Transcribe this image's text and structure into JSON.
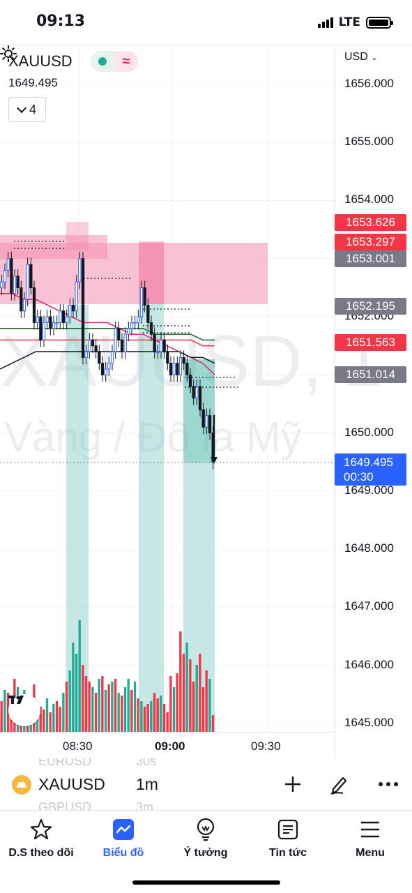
{
  "status_bar": {
    "time": "09:13",
    "network": "LTE"
  },
  "chart_header": {
    "symbol": "XAUUSD",
    "last_price": "1649.495",
    "indicators_count": "4",
    "pill_icon": "≈",
    "currency": "USD"
  },
  "watermark": {
    "line1": "XAUUSD, 1",
    "line2": "Vàng / Đô la Mỹ"
  },
  "price_axis": {
    "ticks": [
      "1656.000",
      "1655.000",
      "1654.000",
      "1652.000",
      "1650.000",
      "1649.000",
      "1648.000",
      "1647.000",
      "1646.000",
      "1645.000"
    ],
    "tags": [
      {
        "value": "1653.626",
        "color": "#f23645"
      },
      {
        "value": "1653.297",
        "color": "#f23645"
      },
      {
        "value": "1653.001",
        "color": "#787b86"
      },
      {
        "value": "1652.195",
        "color": "#787b86"
      },
      {
        "value": "1651.563",
        "color": "#f23645"
      },
      {
        "value": "1651.014",
        "color": "#787b86"
      }
    ],
    "current": {
      "value": "1649.495",
      "countdown": "00:30",
      "color": "#2962ff"
    }
  },
  "time_axis": {
    "labels": [
      "08:30",
      "09:00",
      "09:30"
    ]
  },
  "chart_data": {
    "type": "candlestick",
    "symbol": "XAUUSD",
    "interval": "1m",
    "ylim": [
      1645.0,
      1656.4
    ],
    "x_labels": [
      "08:30",
      "09:00",
      "09:30"
    ],
    "close_series": [
      1652.6,
      1652.8,
      1653.0,
      1652.4,
      1652.7,
      1652.5,
      1652.1,
      1652.3,
      1652.9,
      1652.5,
      1651.9,
      1652.0,
      1651.6,
      1651.9,
      1652.0,
      1651.8,
      1651.9,
      1651.9,
      1652.1,
      1651.9,
      1652.0,
      1652.2,
      1652.1,
      1652.6,
      1653.0,
      1651.3,
      1651.4,
      1651.6,
      1651.5,
      1651.4,
      1651.2,
      1651.0,
      1651.1,
      1651.2,
      1651.4,
      1651.8,
      1651.6,
      1651.4,
      1651.7,
      1651.8,
      1651.9,
      1651.9,
      1652.0,
      1652.5,
      1652.2,
      1651.9,
      1651.7,
      1651.4,
      1651.4,
      1651.6,
      1651.4,
      1651.2,
      1651.0,
      1651.2,
      1651.0,
      1651.3,
      1651.2,
      1651.0,
      1650.8,
      1650.6,
      1650.8,
      1650.4,
      1650.1,
      1650.3,
      1650.0,
      1649.5
    ],
    "volume_series": [
      55,
      75,
      70,
      50,
      95,
      80,
      60,
      75,
      40,
      65,
      85,
      50,
      45,
      40,
      60,
      35,
      50,
      55,
      45,
      70,
      90,
      110,
      160,
      140,
      200,
      120,
      100,
      90,
      80,
      70,
      95,
      100,
      75,
      85,
      90,
      95,
      70,
      65,
      80,
      95,
      75,
      90,
      60,
      55,
      45,
      50,
      55,
      70,
      60,
      65,
      50,
      35,
      100,
      80,
      105,
      180,
      140,
      160,
      130,
      90,
      120,
      140,
      80,
      110,
      95,
      30
    ],
    "volume_colors": [
      "#f23645",
      "#22ab94",
      "#f23645",
      "#f23645",
      "#f23645",
      "#22ab94",
      "#f23645",
      "#22ab94",
      "#f23645",
      "#22ab94",
      "#f23645",
      "#22ab94",
      "#f23645",
      "#f23645",
      "#22ab94",
      "#f23645",
      "#22ab94",
      "#f23645",
      "#f23645",
      "#22ab94",
      "#f23645",
      "#22ab94",
      "#22ab94",
      "#22ab94",
      "#22ab94",
      "#f23645",
      "#f23645",
      "#f23645",
      "#22ab94",
      "#f23645",
      "#22ab94",
      "#f23645",
      "#22ab94",
      "#f23645",
      "#22ab94",
      "#f23645",
      "#22ab94",
      "#f23645",
      "#22ab94",
      "#22ab94",
      "#f23645",
      "#22ab94",
      "#f23645",
      "#22ab94",
      "#f23645",
      "#f23645",
      "#22ab94",
      "#f23645",
      "#f23645",
      "#22ab94",
      "#f23645",
      "#f23645",
      "#f23645",
      "#22ab94",
      "#f23645",
      "#f23645",
      "#f23645",
      "#22ab94",
      "#f23645",
      "#f23645",
      "#22ab94",
      "#f23645",
      "#f23645",
      "#f23645",
      "#22ab94",
      "#f23645"
    ],
    "moving_averages": [
      {
        "color": "#e91e63",
        "values": [
          1652.4,
          1652.4,
          1652.3,
          1652.3,
          1652.2,
          1652.1,
          1652.0,
          1651.9,
          1651.9,
          1651.9,
          1651.8,
          1651.7,
          1651.7,
          1651.6,
          1651.5,
          1651.4,
          1651.3,
          1651.2,
          1651.0
        ]
      },
      {
        "color": "#f23645",
        "values": [
          1651.6,
          1651.6,
          1651.6,
          1651.6,
          1651.6,
          1651.6,
          1651.6,
          1651.6,
          1651.6,
          1651.6,
          1651.6,
          1651.6,
          1651.6,
          1651.6,
          1651.6,
          1651.6,
          1651.6,
          1651.5,
          1651.5
        ]
      },
      {
        "color": "#1b5e20",
        "values": [
          1651.8,
          1651.8,
          1651.8,
          1651.8,
          1651.8,
          1651.8,
          1651.8,
          1651.8,
          1651.8,
          1651.8,
          1651.8,
          1651.8,
          1651.8,
          1651.7,
          1651.7,
          1651.7,
          1651.7,
          1651.6,
          1651.6
        ]
      },
      {
        "color": "#131722",
        "values": [
          1651.1,
          1651.2,
          1651.3,
          1651.4,
          1651.4,
          1651.4,
          1651.4,
          1651.4,
          1651.4,
          1651.4,
          1651.4,
          1651.4,
          1651.4,
          1651.4,
          1651.4,
          1651.4,
          1651.3,
          1651.3,
          1651.2
        ]
      }
    ]
  },
  "toolbar": {
    "symbol": "XAUUSD",
    "interval": "1m",
    "ghost_symbols": [
      "EURUSD",
      "GBPUSD"
    ],
    "ghost_intervals": [
      "30s",
      "3m"
    ]
  },
  "bottom_nav": {
    "items": [
      {
        "label": "D.S theo dõi",
        "icon": "star-icon"
      },
      {
        "label": "Biểu đồ",
        "icon": "chart-icon",
        "active": true
      },
      {
        "label": "Ý tưởng",
        "icon": "lightbulb-icon"
      },
      {
        "label": "Tin tức",
        "icon": "news-icon"
      },
      {
        "label": "Menu",
        "icon": "menu-icon"
      }
    ]
  },
  "colors": {
    "up": "#22ab94",
    "down": "#f23645",
    "accent": "#2962ff",
    "zone_pink": "#f4a7bf",
    "zone_teal": "#b2dfd5"
  }
}
